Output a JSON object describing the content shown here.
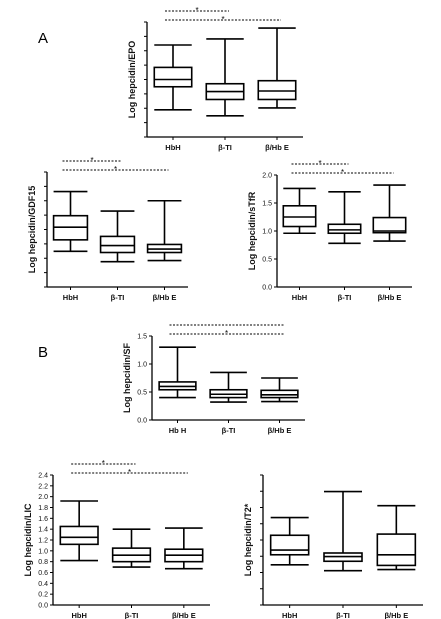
{
  "panel_labels": [
    "A",
    "B"
  ],
  "chart_data": [
    {
      "type": "box",
      "ylabel": "Log hepcidin/EPO",
      "categories": [
        "HbH",
        "β-TI",
        "β/Hb E"
      ],
      "yticks": [],
      "ylim": [
        0.0,
        1.9
      ],
      "boxes": [
        {
          "min": 0.45,
          "q1": 0.83,
          "median": 0.95,
          "q3": 1.15,
          "max": 1.52
        },
        {
          "min": 0.35,
          "q1": 0.62,
          "median": 0.75,
          "q3": 0.88,
          "max": 1.62
        },
        {
          "min": 0.48,
          "q1": 0.62,
          "median": 0.76,
          "q3": 0.93,
          "max": 1.8
        }
      ],
      "significance": [
        {
          "label": "*",
          "from": 0,
          "to": 1
        },
        {
          "label": "*",
          "from": 0,
          "to": 2
        }
      ]
    },
    {
      "type": "box",
      "ylabel": "Log hepcidin/GDF15",
      "categories": [
        "HbH",
        "β-TI",
        "β/Hb E"
      ],
      "yticks": [],
      "ylim": [
        0.0,
        1.0
      ],
      "boxes": [
        {
          "min": 0.31,
          "q1": 0.41,
          "median": 0.52,
          "q3": 0.62,
          "max": 0.83
        },
        {
          "min": 0.22,
          "q1": 0.3,
          "median": 0.36,
          "q3": 0.44,
          "max": 0.66
        },
        {
          "min": 0.23,
          "q1": 0.3,
          "median": 0.33,
          "q3": 0.37,
          "max": 0.75
        }
      ],
      "significance": [
        {
          "label": "*",
          "from": 0,
          "to": 1
        },
        {
          "label": "*",
          "from": 0,
          "to": 2
        }
      ]
    },
    {
      "type": "box",
      "ylabel": "Log hepcidin/sTfR",
      "categories": [
        "HbH",
        "β-TI",
        "β/Hb E"
      ],
      "yticks": [
        "0.0",
        "0.5",
        "1.0",
        "1.5",
        "2.0"
      ],
      "ylim": [
        0.0,
        2.0
      ],
      "boxes": [
        {
          "min": 0.96,
          "q1": 1.08,
          "median": 1.25,
          "q3": 1.45,
          "max": 1.76
        },
        {
          "min": 0.78,
          "q1": 0.96,
          "median": 1.02,
          "q3": 1.12,
          "max": 1.7
        },
        {
          "min": 0.82,
          "q1": 0.97,
          "median": 1.0,
          "q3": 1.24,
          "max": 1.82
        }
      ],
      "significance": [
        {
          "label": "*",
          "from": 0,
          "to": 1
        },
        {
          "label": "*",
          "from": 0,
          "to": 2
        }
      ]
    },
    {
      "type": "box",
      "ylabel": "Log hepcidin/SF",
      "categories": [
        "Hb H",
        "β-TI",
        "β/Hb E"
      ],
      "yticks": [
        "0.0",
        "0.5",
        "1.0",
        "1.5"
      ],
      "ylim": [
        0.0,
        1.5
      ],
      "boxes": [
        {
          "min": 0.4,
          "q1": 0.54,
          "median": 0.6,
          "q3": 0.68,
          "max": 1.3
        },
        {
          "min": 0.32,
          "q1": 0.4,
          "median": 0.46,
          "q3": 0.54,
          "max": 0.85
        },
        {
          "min": 0.33,
          "q1": 0.4,
          "median": 0.45,
          "q3": 0.53,
          "max": 0.75
        }
      ],
      "significance": [
        {
          "label": "",
          "from": 0,
          "to": 2
        },
        {
          "label": "*",
          "from": 0,
          "to": 2
        }
      ]
    },
    {
      "type": "box",
      "ylabel": "Log hepcidin/LIC",
      "categories": [
        "HbH",
        "β-TI",
        "β/Hb E"
      ],
      "yticks": [
        "0.0",
        "0.2",
        "0.4",
        "0.6",
        "0.8",
        "1.0",
        "1.2",
        "1.4",
        "1.6",
        "1.8",
        "2.0",
        "2.2",
        "2.4"
      ],
      "ylim": [
        0.0,
        2.4
      ],
      "boxes": [
        {
          "min": 0.82,
          "q1": 1.12,
          "median": 1.25,
          "q3": 1.45,
          "max": 1.92
        },
        {
          "min": 0.7,
          "q1": 0.8,
          "median": 0.92,
          "q3": 1.05,
          "max": 1.4
        },
        {
          "min": 0.67,
          "q1": 0.8,
          "median": 0.92,
          "q3": 1.03,
          "max": 1.42
        }
      ],
      "significance": [
        {
          "label": "*",
          "from": 0,
          "to": 1
        },
        {
          "label": "*",
          "from": 0,
          "to": 2
        }
      ]
    },
    {
      "type": "box",
      "ylabel": "Log hepcidin/T2*",
      "categories": [
        "HbH",
        "β-TI",
        "β/Hb E"
      ],
      "yticks": [],
      "ylim": [
        0.0,
        2.2
      ],
      "boxes": [
        {
          "min": 0.68,
          "q1": 0.85,
          "median": 0.93,
          "q3": 1.18,
          "max": 1.48
        },
        {
          "min": 0.58,
          "q1": 0.74,
          "median": 0.82,
          "q3": 0.88,
          "max": 1.92
        },
        {
          "min": 0.6,
          "q1": 0.67,
          "median": 0.85,
          "q3": 1.2,
          "max": 1.68
        }
      ],
      "significance": []
    }
  ]
}
